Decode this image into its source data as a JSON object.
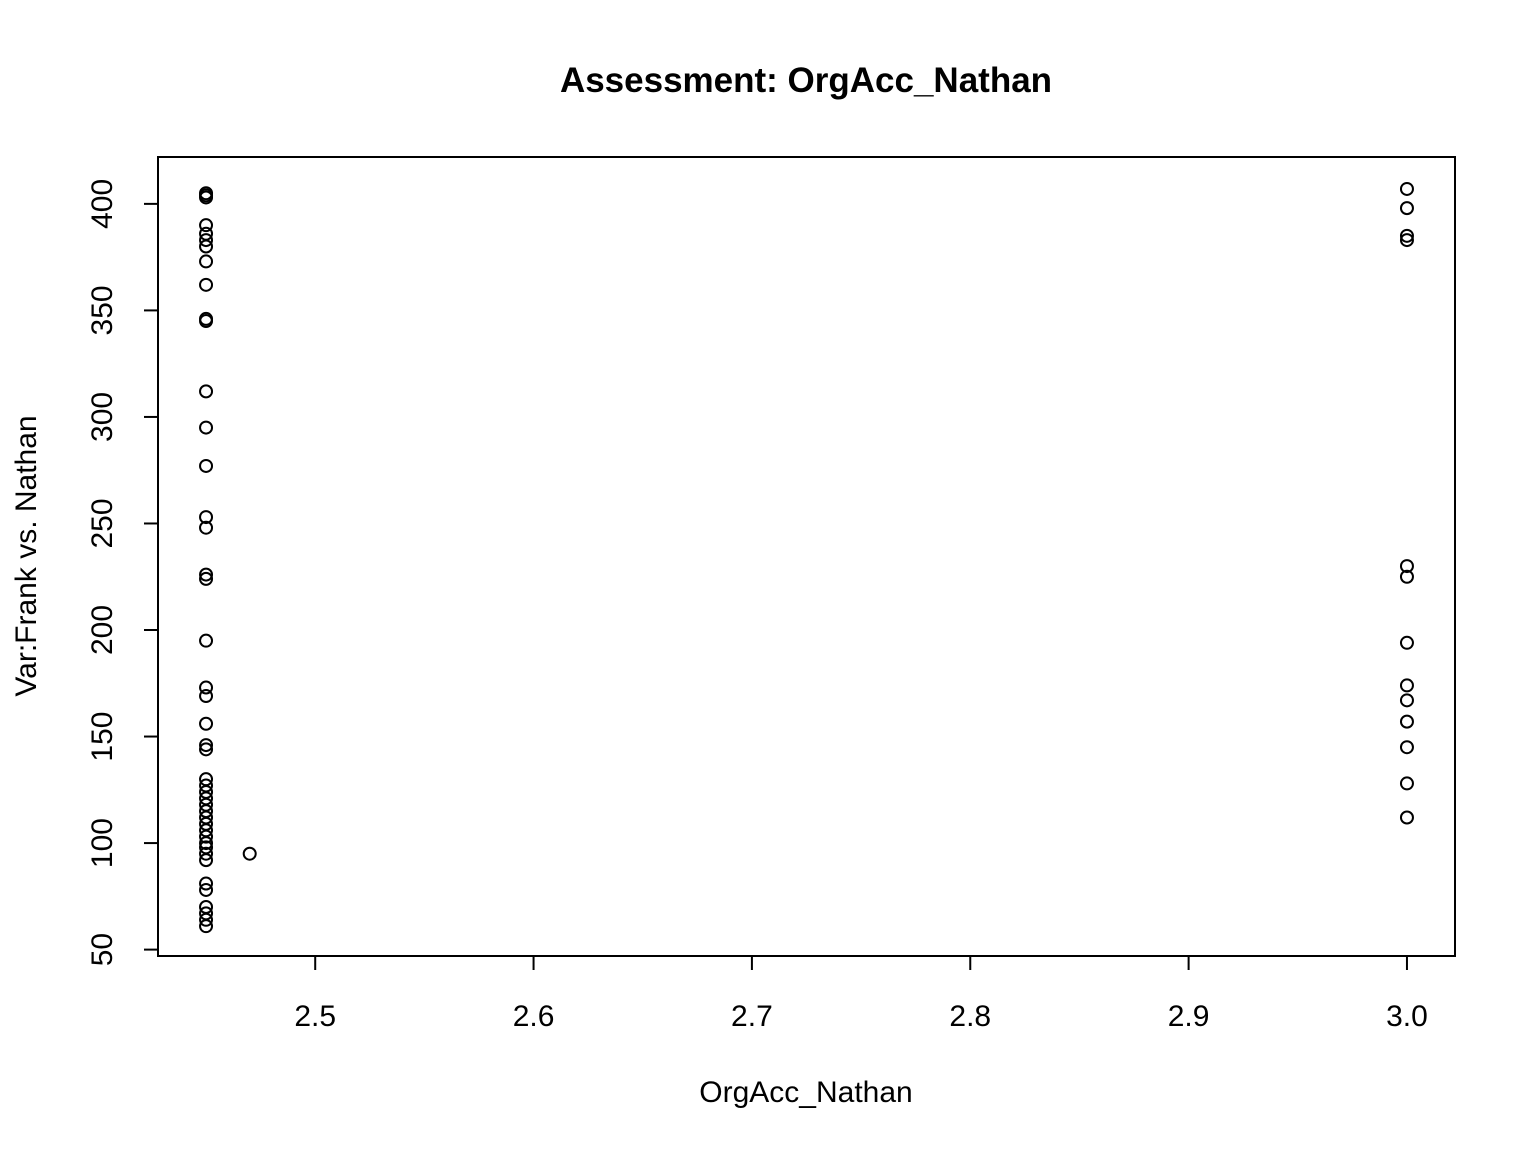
{
  "chart_data": {
    "type": "scatter",
    "title": "Assessment: OrgAcc_Nathan",
    "xlabel": "OrgAcc_Nathan",
    "ylabel": "Var:Frank vs. Nathan",
    "xlim": [
      2.428,
      3.022
    ],
    "ylim": [
      47,
      422
    ],
    "x_ticks": [
      2.5,
      2.6,
      2.7,
      2.8,
      2.9,
      3.0
    ],
    "x_tick_labels": [
      "2.5",
      "2.6",
      "2.7",
      "2.8",
      "2.9",
      "3.0"
    ],
    "y_ticks": [
      50,
      100,
      150,
      200,
      250,
      300,
      350,
      400
    ],
    "y_tick_labels": [
      "50",
      "100",
      "150",
      "200",
      "250",
      "300",
      "350",
      "400"
    ],
    "grid": false,
    "marker": "open-circle",
    "points": [
      {
        "x": 2.45,
        "y": 405
      },
      {
        "x": 2.45,
        "y": 404
      },
      {
        "x": 2.45,
        "y": 403
      },
      {
        "x": 2.45,
        "y": 390
      },
      {
        "x": 2.45,
        "y": 386
      },
      {
        "x": 2.45,
        "y": 383
      },
      {
        "x": 2.45,
        "y": 380
      },
      {
        "x": 2.45,
        "y": 373
      },
      {
        "x": 2.45,
        "y": 362
      },
      {
        "x": 2.45,
        "y": 346
      },
      {
        "x": 2.45,
        "y": 345
      },
      {
        "x": 2.45,
        "y": 312
      },
      {
        "x": 2.45,
        "y": 295
      },
      {
        "x": 2.45,
        "y": 277
      },
      {
        "x": 2.45,
        "y": 253
      },
      {
        "x": 2.45,
        "y": 248
      },
      {
        "x": 2.45,
        "y": 226
      },
      {
        "x": 2.45,
        "y": 224
      },
      {
        "x": 2.45,
        "y": 195
      },
      {
        "x": 2.45,
        "y": 173
      },
      {
        "x": 2.45,
        "y": 169
      },
      {
        "x": 2.45,
        "y": 156
      },
      {
        "x": 2.45,
        "y": 146
      },
      {
        "x": 2.45,
        "y": 144
      },
      {
        "x": 2.45,
        "y": 130
      },
      {
        "x": 2.45,
        "y": 127
      },
      {
        "x": 2.45,
        "y": 124
      },
      {
        "x": 2.45,
        "y": 121
      },
      {
        "x": 2.45,
        "y": 118
      },
      {
        "x": 2.45,
        "y": 115
      },
      {
        "x": 2.45,
        "y": 112
      },
      {
        "x": 2.45,
        "y": 109
      },
      {
        "x": 2.45,
        "y": 106
      },
      {
        "x": 2.45,
        "y": 103
      },
      {
        "x": 2.45,
        "y": 100
      },
      {
        "x": 2.45,
        "y": 98
      },
      {
        "x": 2.45,
        "y": 95
      },
      {
        "x": 2.45,
        "y": 92
      },
      {
        "x": 2.45,
        "y": 81
      },
      {
        "x": 2.45,
        "y": 78
      },
      {
        "x": 2.45,
        "y": 70
      },
      {
        "x": 2.45,
        "y": 67
      },
      {
        "x": 2.45,
        "y": 64
      },
      {
        "x": 2.45,
        "y": 61
      },
      {
        "x": 2.47,
        "y": 95
      },
      {
        "x": 3.0,
        "y": 407
      },
      {
        "x": 3.0,
        "y": 398
      },
      {
        "x": 3.0,
        "y": 385
      },
      {
        "x": 3.0,
        "y": 383
      },
      {
        "x": 3.0,
        "y": 230
      },
      {
        "x": 3.0,
        "y": 225
      },
      {
        "x": 3.0,
        "y": 194
      },
      {
        "x": 3.0,
        "y": 174
      },
      {
        "x": 3.0,
        "y": 167
      },
      {
        "x": 3.0,
        "y": 157
      },
      {
        "x": 3.0,
        "y": 145
      },
      {
        "x": 3.0,
        "y": 128
      },
      {
        "x": 3.0,
        "y": 112
      }
    ]
  }
}
